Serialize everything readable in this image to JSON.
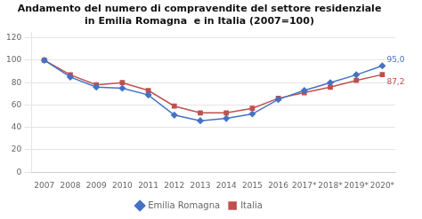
{
  "chart_data": {
    "type": "line",
    "title": "Andamento del numero di compravendite del settore residenziale\nin Emilia Romagna  e in Italia (2007=100)",
    "categories": [
      "2007",
      "2008",
      "2009",
      "2010",
      "2011",
      "2012",
      "2013",
      "2014",
      "2015",
      "2016",
      "2017*",
      "2018*",
      "2019*",
      "2020*"
    ],
    "series": [
      {
        "name": "Emilia Romagna",
        "color": "#4472C4",
        "marker": "diamond",
        "values": [
          100,
          85,
          76,
          75,
          69,
          51,
          46,
          48,
          52,
          65,
          73,
          80,
          87,
          95.0
        ]
      },
      {
        "name": "Italia",
        "color": "#C0504D",
        "marker": "square",
        "values": [
          100,
          87,
          78,
          80,
          73,
          59,
          53,
          53,
          57,
          66,
          71,
          76,
          82,
          87.2
        ]
      }
    ],
    "annotations": [
      {
        "text": "95,0",
        "x": "2020*",
        "y": 95.0,
        "color": "#4472C4"
      },
      {
        "text": "87,2",
        "x": "2020*",
        "y": 87.2,
        "color": "#C0504D"
      }
    ],
    "ylim": [
      0,
      125
    ],
    "yticks": [
      0,
      20,
      40,
      60,
      80,
      100,
      120
    ],
    "grid": true,
    "legend": "bottom"
  }
}
